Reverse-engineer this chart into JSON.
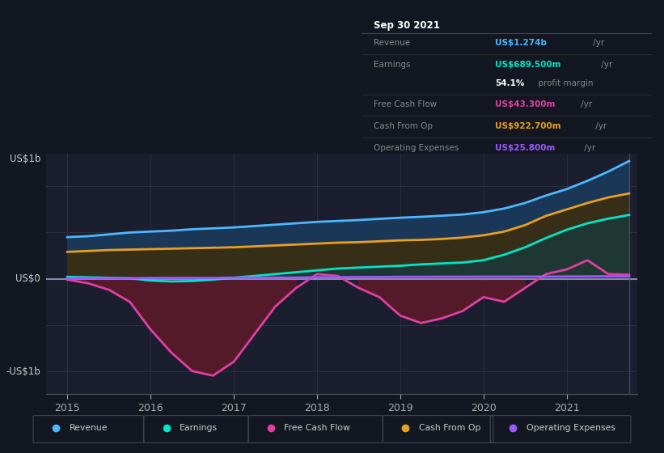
{
  "bg_color": "#131722",
  "plot_bg": "#1a1e2e",
  "grid_color": "#2a2e3d",
  "zero_line_color": "#8888aa",
  "colors": {
    "revenue": "#4db8ff",
    "earnings": "#00e5c8",
    "fcf": "#e040a0",
    "cash_from_op": "#e8a020",
    "op_expenses": "#9b59ff"
  },
  "fill_colors": {
    "revenue": "#1a3a5c",
    "earnings": "#1a3a3a",
    "fcf_neg": "#5c1a2a",
    "cash_from_op": "#3a2e10"
  },
  "legend": [
    {
      "label": "Revenue",
      "color": "#4db8ff"
    },
    {
      "label": "Earnings",
      "color": "#00e5c8"
    },
    {
      "label": "Free Cash Flow",
      "color": "#e040a0"
    },
    {
      "label": "Cash From Op",
      "color": "#e8a020"
    },
    {
      "label": "Operating Expenses",
      "color": "#9b59ff"
    }
  ],
  "tooltip": {
    "date": "Sep 30 2021",
    "revenue_label": "Revenue",
    "revenue_val": "US$1.274b",
    "revenue_color": "#4db8ff",
    "earnings_label": "Earnings",
    "earnings_val": "US$689.500m",
    "earnings_color": "#00e5c8",
    "margin_val": "54.1%",
    "fcf_label": "Free Cash Flow",
    "fcf_val": "US$43.300m",
    "fcf_color": "#e040a0",
    "cop_label": "Cash From Op",
    "cop_val": "US$922.700m",
    "cop_color": "#e8a020",
    "opex_label": "Operating Expenses",
    "opex_val": "US$25.800m",
    "opex_color": "#9b59ff"
  },
  "xlim": [
    2014.75,
    2021.85
  ],
  "ylim": [
    -1250000000.0,
    1350000000.0
  ],
  "xticks": [
    2015,
    2016,
    2017,
    2018,
    2019,
    2020,
    2021
  ],
  "ylabel_1b": "US$1b",
  "ylabel_0": "US$0",
  "ylabel_m1b": "-US$1b"
}
